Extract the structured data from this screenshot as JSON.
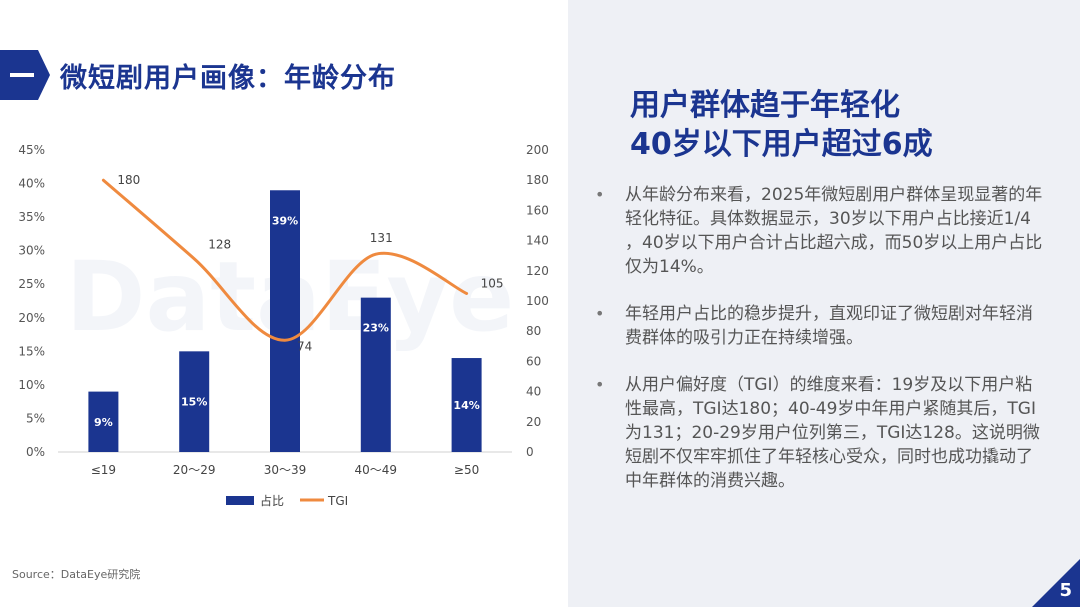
{
  "page_title": "微短剧用户画像：年龄分布",
  "heading": {
    "line1": "用户群体趋于年轻化",
    "line2": "40岁以下用户超过6成"
  },
  "bullets": [
    "从年龄分布来看，2025年微短剧用户群体呈现显著的年轻化特征。具体数据显示，30岁以下用户占比接近1/4 ，40岁以下用户合计占比超六成，而50岁以上用户占比仅为14%。",
    "年轻用户占比的稳步提升，直观印证了微短剧对年轻消费群体的吸引力正在持续增强。",
    "从用户偏好度（TGI）的维度来看：19岁及以下用户粘性最高，TGI达180；40-49岁中年用户紧随其后，TGI为131；20-29岁用户位列第三，TGI达128。这说明微短剧不仅牢牢抓住了年轻核心受众，同时也成功撬动了中年群体的消费兴趣。"
  ],
  "source": "Source：DataEye研究院",
  "page_number": "5",
  "watermark": "DataEye",
  "colors": {
    "brand": "#1b3590",
    "bar": "#1b3590",
    "line": "#ef8a3f",
    "panel": "#eef0f5"
  },
  "chart_data": {
    "type": "bar+line",
    "categories": [
      "≤19",
      "20～29",
      "30～39",
      "40～49",
      "≥50"
    ],
    "series": [
      {
        "name": "占比",
        "type": "bar",
        "axis": "left",
        "values": [
          9,
          15,
          39,
          23,
          14
        ],
        "labels": [
          "9%",
          "15%",
          "39%",
          "23%",
          "14%"
        ]
      },
      {
        "name": "TGI",
        "type": "line",
        "axis": "right",
        "values": [
          180,
          128,
          74,
          131,
          105
        ],
        "labels": [
          "180",
          "128",
          "74",
          "131",
          "105"
        ]
      }
    ],
    "y_left": {
      "min": 0,
      "max": 45,
      "step": 5,
      "ticks": [
        "0%",
        "5%",
        "10%",
        "15%",
        "20%",
        "25%",
        "30%",
        "35%",
        "40%",
        "45%"
      ]
    },
    "y_right": {
      "min": 0,
      "max": 200,
      "step": 20,
      "ticks": [
        "0",
        "20",
        "40",
        "60",
        "80",
        "100",
        "120",
        "140",
        "160",
        "180",
        "200"
      ]
    },
    "legend_position": "bottom",
    "grid": false
  }
}
